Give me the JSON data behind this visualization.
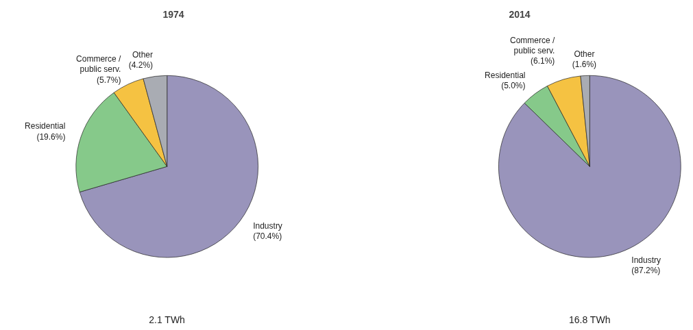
{
  "chart_data": [
    {
      "type": "pie",
      "title": "1974",
      "categories": [
        "Industry",
        "Residential",
        "Commerce / public serv.",
        "Other"
      ],
      "values": [
        70.4,
        19.6,
        5.7,
        4.2
      ],
      "colors": [
        "#9994bb",
        "#86c98a",
        "#f5c242",
        "#a9acb3"
      ],
      "value_labels": [
        "(70.4%)",
        "(19.6%)",
        "(5.7%)",
        "(4.2%)"
      ],
      "annotations": [
        "2.1 TWh"
      ]
    },
    {
      "type": "pie",
      "title": "2014",
      "categories": [
        "Industry",
        "Residential",
        "Commerce / public serv.",
        "Other"
      ],
      "values": [
        87.2,
        5.0,
        6.1,
        1.6
      ],
      "colors": [
        "#9994bb",
        "#86c98a",
        "#f5c242",
        "#a9acb3"
      ],
      "value_labels": [
        "(87.2%)",
        "(5.0%)",
        "(6.1%)",
        "(1.6%)"
      ],
      "annotations": [
        "16.8 TWh"
      ]
    }
  ]
}
